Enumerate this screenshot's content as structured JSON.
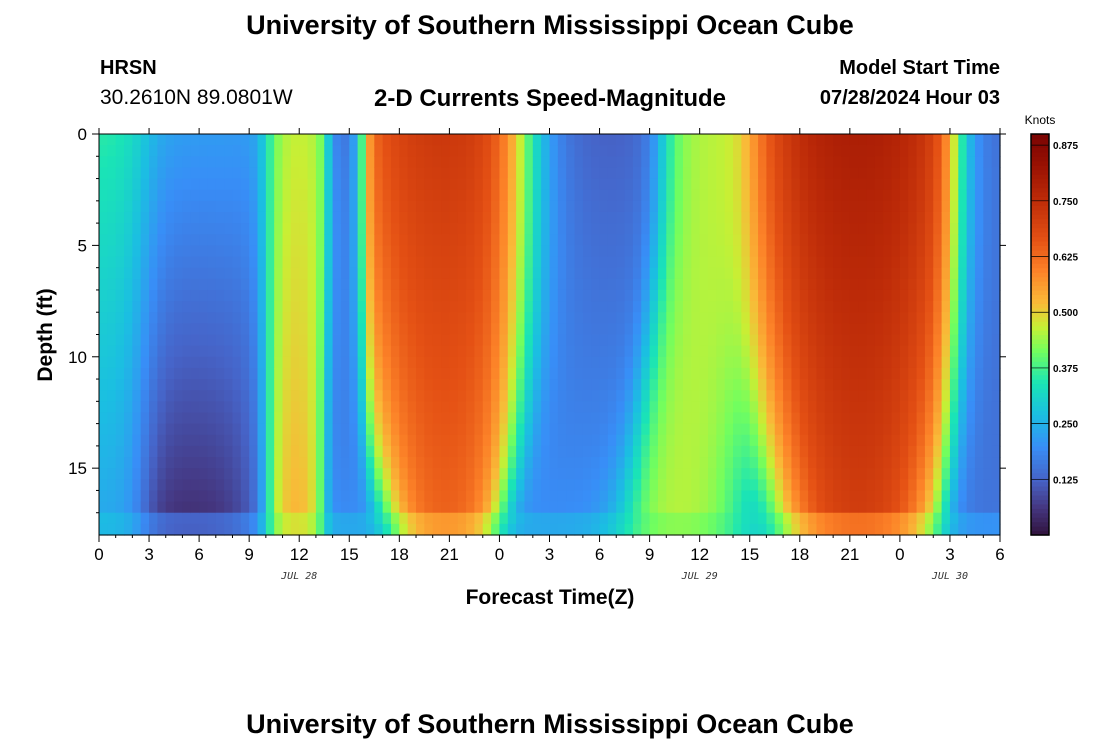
{
  "header": {
    "title": "University of Southern Mississippi Ocean Cube",
    "station_code": "HRSN",
    "station_coords": "30.2610N  89.0801W",
    "subtitle": "2-D Currents Speed-Magnitude",
    "model_label": "Model Start Time",
    "model_time": "07/28/2024 Hour 03"
  },
  "footer": {
    "title": "University of Southern Mississippi Ocean Cube"
  },
  "chart_data": {
    "type": "heatmap",
    "title": "2-D Currents Speed-Magnitude",
    "xlabel": "Forecast Time(Z)",
    "ylabel": "Depth (ft)",
    "xlim": [
      0,
      54
    ],
    "ylim": [
      0,
      18
    ],
    "y_inverted": true,
    "x_ticks": [
      {
        "x": 0,
        "label": "0"
      },
      {
        "x": 3,
        "label": "3"
      },
      {
        "x": 6,
        "label": "6"
      },
      {
        "x": 9,
        "label": "9"
      },
      {
        "x": 12,
        "label": "12"
      },
      {
        "x": 15,
        "label": "15"
      },
      {
        "x": 18,
        "label": "18"
      },
      {
        "x": 21,
        "label": "21"
      },
      {
        "x": 24,
        "label": "0"
      },
      {
        "x": 27,
        "label": "3"
      },
      {
        "x": 30,
        "label": "6"
      },
      {
        "x": 33,
        "label": "9"
      },
      {
        "x": 36,
        "label": "12"
      },
      {
        "x": 39,
        "label": "15"
      },
      {
        "x": 42,
        "label": "18"
      },
      {
        "x": 45,
        "label": "21"
      },
      {
        "x": 48,
        "label": "0"
      },
      {
        "x": 51,
        "label": "3"
      },
      {
        "x": 54,
        "label": "6"
      }
    ],
    "y_ticks": [
      {
        "y": 0,
        "label": "0"
      },
      {
        "y": 5,
        "label": "5"
      },
      {
        "y": 10,
        "label": "10"
      },
      {
        "y": 15,
        "label": "15"
      }
    ],
    "date_labels": [
      {
        "x": 12,
        "label": "JUL 28"
      },
      {
        "x": 36,
        "label": "JUL 29"
      },
      {
        "x": 51,
        "label": "JUL 30"
      }
    ],
    "colorbar": {
      "title": "Knots",
      "min": 0.0,
      "max": 0.9,
      "ticks": [
        {
          "v": 0.125,
          "label": "0.125"
        },
        {
          "v": 0.25,
          "label": "0.250"
        },
        {
          "v": 0.375,
          "label": "0.375"
        },
        {
          "v": 0.5,
          "label": "0.500"
        },
        {
          "v": 0.625,
          "label": "0.625"
        },
        {
          "v": 0.75,
          "label": "0.750"
        },
        {
          "v": 0.875,
          "label": "0.875"
        }
      ]
    },
    "speed_bands_knots": [
      {
        "t_center": 0.5,
        "width": 1.6,
        "v_surface": 0.38,
        "v_bottom": 0.24,
        "shrink": 0.2,
        "bottom_bias": 0.0
      },
      {
        "t_center": 5.5,
        "width": 2.0,
        "v_surface": 0.22,
        "v_bottom": 0.02,
        "shrink": 0.1,
        "bottom_bias": 0.0
      },
      {
        "t_center": 11.8,
        "width": 0.9,
        "v_surface": 0.5,
        "v_bottom": 0.58,
        "shrink": 0.1,
        "bottom_bias": 0.0
      },
      {
        "t_center": 14.8,
        "width": 0.6,
        "v_surface": 0.05,
        "v_bottom": 0.2,
        "shrink": 0.05,
        "bottom_bias": 0.0
      },
      {
        "t_center": 20.8,
        "width": 3.2,
        "v_surface": 0.8,
        "v_bottom": 0.7,
        "shrink": 0.55,
        "bottom_bias": 0.0
      },
      {
        "t_center": 29.0,
        "width": 2.2,
        "v_surface": 0.1,
        "v_bottom": 0.2,
        "shrink": 0.1,
        "bottom_bias": 0.0
      },
      {
        "t_center": 36.3,
        "width": 1.3,
        "v_surface": 0.48,
        "v_bottom": 0.5,
        "shrink": -0.6,
        "bottom_bias": -2.2
      },
      {
        "t_center": 45.5,
        "width": 3.5,
        "v_surface": 0.88,
        "v_bottom": 0.78,
        "shrink": 0.4,
        "bottom_bias": 0.0
      },
      {
        "t_center": 53.5,
        "width": 1.2,
        "v_surface": 0.1,
        "v_bottom": 0.15,
        "shrink": 0.0,
        "bottom_bias": 0.0
      }
    ],
    "background_speed": 0.2
  }
}
